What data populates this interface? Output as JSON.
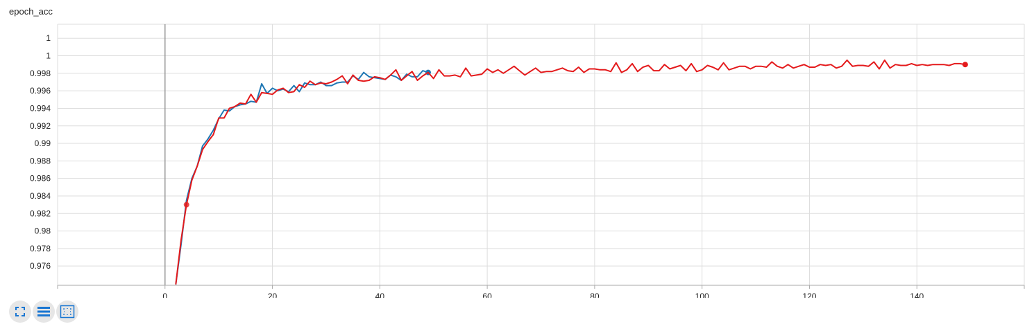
{
  "title": "epoch_acc",
  "toolbar": {
    "buttons": [
      {
        "icon": "fullscreen-icon"
      },
      {
        "icon": "data-selection-icon"
      },
      {
        "icon": "fit-domain-icon"
      }
    ]
  },
  "colors": {
    "train": "#1f77b4",
    "validation": "#e41a1c",
    "grid": "#dddddd",
    "zero_line": "#999999",
    "toolbar_icon": "#1976d2"
  },
  "chart_data": {
    "type": "line",
    "title": "epoch_acc",
    "xlabel": "",
    "ylabel": "",
    "xlim": [
      -20,
      160
    ],
    "ylim": [
      0.9738,
      1.0036
    ],
    "grid": true,
    "x_ticks": [
      0,
      20,
      40,
      60,
      80,
      100,
      120,
      140
    ],
    "x_tick_labels": [
      "0",
      "20",
      "40",
      "60",
      "80",
      "100",
      "120",
      "140"
    ],
    "y_ticks": [
      0.976,
      0.978,
      0.98,
      0.982,
      0.984,
      0.986,
      0.988,
      0.99,
      0.992,
      0.994,
      0.996,
      0.998,
      1.0,
      1.002
    ],
    "y_tick_labels": [
      "0.976",
      "0.978",
      "0.98",
      "0.982",
      "0.984",
      "0.986",
      "0.988",
      "0.99",
      "0.992",
      "0.994",
      "0.996",
      "0.998",
      "1",
      "1"
    ],
    "series": [
      {
        "color": "#1f77b4",
        "x": [
          2,
          3,
          4,
          5,
          6,
          7,
          8,
          9,
          10,
          11,
          12,
          13,
          14,
          15,
          16,
          17,
          18,
          19,
          20,
          21,
          22,
          23,
          24,
          25,
          26,
          27,
          28,
          29,
          30,
          31,
          32,
          33,
          34,
          35,
          36,
          37,
          38,
          39,
          40,
          41,
          42,
          43,
          44,
          45,
          46,
          47,
          48,
          49
        ],
        "y": [
          0.9739,
          0.9785,
          0.9835,
          0.986,
          0.9874,
          0.9897,
          0.9905,
          0.9915,
          0.9928,
          0.9938,
          0.9937,
          0.9942,
          0.9944,
          0.9945,
          0.9948,
          0.9947,
          0.9968,
          0.9957,
          0.9963,
          0.996,
          0.9962,
          0.9959,
          0.9966,
          0.9959,
          0.9969,
          0.9967,
          0.9967,
          0.997,
          0.9966,
          0.9966,
          0.9969,
          0.997,
          0.997,
          0.9977,
          0.9973,
          0.9981,
          0.9976,
          0.9975,
          0.9974,
          0.9973,
          0.9978,
          0.9976,
          0.9972,
          0.9979,
          0.9976,
          0.9976,
          0.9983,
          0.9981
        ],
        "end_marker": true
      },
      {
        "color": "#e41a1c",
        "x": [
          2,
          3,
          4,
          5,
          6,
          7,
          8,
          9,
          10,
          11,
          12,
          13,
          14,
          15,
          16,
          17,
          18,
          19,
          20,
          21,
          22,
          23,
          24,
          25,
          26,
          27,
          28,
          29,
          30,
          31,
          32,
          33,
          34,
          35,
          36,
          37,
          38,
          39,
          40,
          41,
          42,
          43,
          44,
          45,
          46,
          47,
          48,
          49,
          50,
          51,
          52,
          53,
          54,
          55,
          56,
          57,
          58,
          59,
          60,
          61,
          62,
          63,
          64,
          65,
          66,
          67,
          68,
          69,
          70,
          71,
          72,
          73,
          74,
          75,
          76,
          77,
          78,
          79,
          80,
          81,
          82,
          83,
          84,
          85,
          86,
          87,
          88,
          89,
          90,
          91,
          92,
          93,
          94,
          95,
          96,
          97,
          98,
          99,
          100,
          101,
          102,
          103,
          104,
          105,
          106,
          107,
          108,
          109,
          110,
          111,
          112,
          113,
          114,
          115,
          116,
          117,
          118,
          119,
          120,
          121,
          122,
          123,
          124,
          125,
          126,
          127,
          128,
          129,
          130,
          131,
          132,
          133,
          134,
          135,
          136,
          137,
          138,
          139,
          140,
          141,
          142,
          143,
          144,
          145,
          146,
          147,
          148,
          149
        ],
        "y": [
          0.9739,
          0.979,
          0.983,
          0.9858,
          0.9874,
          0.9893,
          0.9902,
          0.991,
          0.9929,
          0.9929,
          0.994,
          0.9942,
          0.9946,
          0.9945,
          0.9956,
          0.9947,
          0.9958,
          0.9957,
          0.9956,
          0.9961,
          0.9963,
          0.9958,
          0.9959,
          0.9967,
          0.9964,
          0.9971,
          0.9967,
          0.9969,
          0.9968,
          0.997,
          0.9973,
          0.9977,
          0.9968,
          0.9978,
          0.9972,
          0.9971,
          0.9972,
          0.9976,
          0.9975,
          0.9973,
          0.9978,
          0.9984,
          0.9972,
          0.9977,
          0.9982,
          0.9972,
          0.9977,
          0.9981,
          0.9974,
          0.9984,
          0.9977,
          0.9977,
          0.9978,
          0.9976,
          0.9986,
          0.9977,
          0.9978,
          0.9979,
          0.9985,
          0.9981,
          0.9984,
          0.998,
          0.9984,
          0.9988,
          0.9983,
          0.9978,
          0.9982,
          0.9986,
          0.9981,
          0.9982,
          0.9982,
          0.9984,
          0.9986,
          0.9983,
          0.9982,
          0.9987,
          0.9981,
          0.9985,
          0.9985,
          0.9984,
          0.9984,
          0.9982,
          0.9992,
          0.9981,
          0.9984,
          0.9991,
          0.9982,
          0.9987,
          0.9989,
          0.9983,
          0.9983,
          0.999,
          0.9985,
          0.9987,
          0.9989,
          0.9983,
          0.9991,
          0.9982,
          0.9984,
          0.9989,
          0.9987,
          0.9984,
          0.9992,
          0.9984,
          0.9986,
          0.9988,
          0.9988,
          0.9985,
          0.9988,
          0.9988,
          0.9987,
          0.9993,
          0.9988,
          0.9986,
          0.999,
          0.9986,
          0.9988,
          0.999,
          0.9987,
          0.9987,
          0.999,
          0.9989,
          0.999,
          0.9986,
          0.9988,
          0.9995,
          0.9988,
          0.9989,
          0.9989,
          0.9988,
          0.9993,
          0.9985,
          0.9995,
          0.9986,
          0.999,
          0.9989,
          0.9989,
          0.9991,
          0.9989,
          0.999,
          0.9989,
          0.999,
          0.999,
          0.999,
          0.9989,
          0.9991,
          0.9991,
          0.999
        ],
        "start_marker_x": 4,
        "start_marker_y": 0.983,
        "end_marker": true
      }
    ]
  }
}
